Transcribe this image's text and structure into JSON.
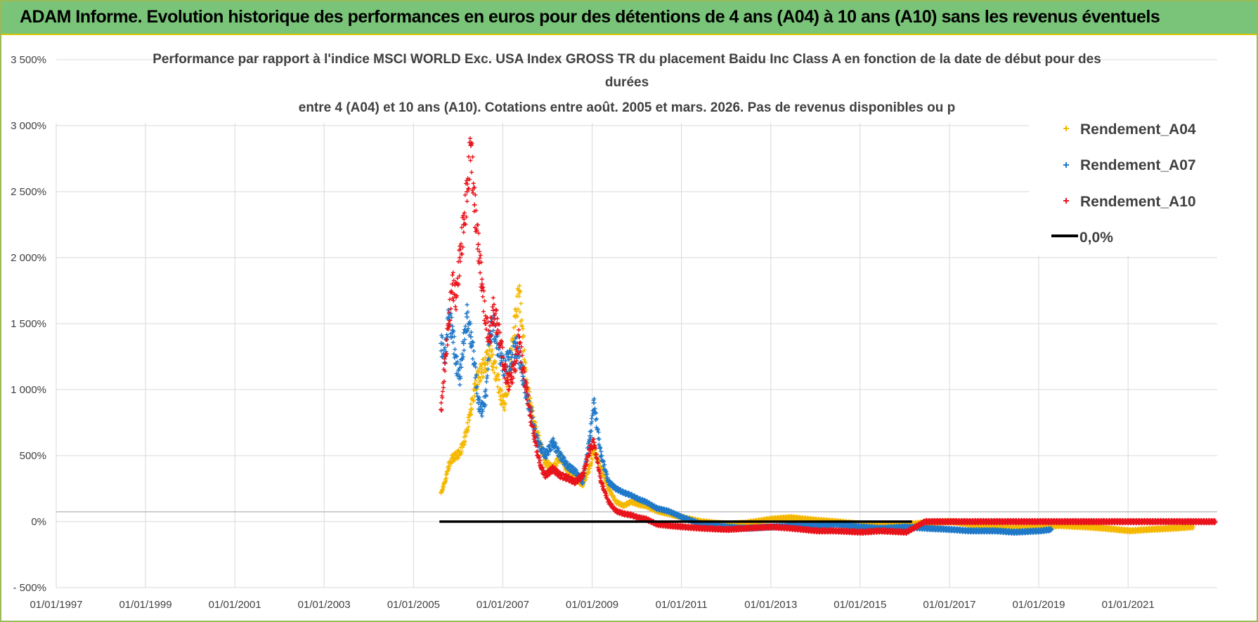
{
  "header": {
    "title": "ADAM Informe. Evolution historique des performances en euros pour des détentions de 4 ans (A04) à 10 ans (A10) sans les revenus éventuels"
  },
  "chart_data": {
    "type": "scatter",
    "subtitle_lines": [
      "Performance par rapport à l'indice MSCI WORLD Exc. USA Index GROSS TR  du placement Baidu Inc Class A en fonction de la date de début pour des",
      "durées",
      "entre 4 (A04) et 10 ans (A10).  Cotations entre août. 2005 et mars. 2026.  Pas de revenus disponibles ou p"
    ],
    "xlabel": "",
    "ylabel": "",
    "x_ticks": [
      "01/01/1997",
      "01/01/1999",
      "01/01/2001",
      "01/01/2003",
      "01/01/2005",
      "01/01/2007",
      "01/01/2009",
      "01/01/2011",
      "01/01/2013",
      "01/01/2015",
      "01/01/2017",
      "01/01/2019",
      "01/01/2021"
    ],
    "xlim": [
      "1997-01-01",
      "2022-12-31"
    ],
    "y_ticks": [
      "- 500%",
      "0%",
      "500%",
      "1 000%",
      "1 500%",
      "2 000%",
      "2 500%",
      "3 000%",
      "3 500%"
    ],
    "ylim": [
      -500,
      3500
    ],
    "grid": true,
    "legend_position": "top-right",
    "series": [
      {
        "name": "Rendement_A04",
        "color": "#f5b800",
        "marker": "plus",
        "points": [
          [
            "2005-08-15",
            220
          ],
          [
            "2005-09-15",
            300
          ],
          [
            "2005-10-15",
            420
          ],
          [
            "2005-11-15",
            480
          ],
          [
            "2005-12-15",
            500
          ],
          [
            "2006-01-15",
            520
          ],
          [
            "2006-02-15",
            600
          ],
          [
            "2006-03-15",
            700
          ],
          [
            "2006-04-15",
            850
          ],
          [
            "2006-05-15",
            1000
          ],
          [
            "2006-06-15",
            1100
          ],
          [
            "2006-07-15",
            1150
          ],
          [
            "2006-08-15",
            1200
          ],
          [
            "2006-09-15",
            1300
          ],
          [
            "2006-10-15",
            1200
          ],
          [
            "2006-11-15",
            1100
          ],
          [
            "2006-12-15",
            950
          ],
          [
            "2007-01-15",
            900
          ],
          [
            "2007-02-15",
            1050
          ],
          [
            "2007-03-15",
            1300
          ],
          [
            "2007-04-15",
            1550
          ],
          [
            "2007-05-15",
            1750
          ],
          [
            "2007-06-15",
            1400
          ],
          [
            "2007-07-15",
            1050
          ],
          [
            "2007-08-15",
            900
          ],
          [
            "2007-09-15",
            750
          ],
          [
            "2007-10-15",
            650
          ],
          [
            "2007-11-15",
            550
          ],
          [
            "2007-12-15",
            450
          ],
          [
            "2008-02-15",
            400
          ],
          [
            "2008-04-15",
            500
          ],
          [
            "2008-06-15",
            380
          ],
          [
            "2008-08-15",
            330
          ],
          [
            "2008-10-15",
            280
          ],
          [
            "2008-12-15",
            420
          ],
          [
            "2009-01-15",
            550
          ],
          [
            "2009-03-15",
            400
          ],
          [
            "2009-05-15",
            250
          ],
          [
            "2009-07-15",
            150
          ],
          [
            "2009-09-15",
            120
          ],
          [
            "2009-11-15",
            150
          ],
          [
            "2010-01-15",
            130
          ],
          [
            "2010-03-15",
            120
          ],
          [
            "2010-06-15",
            80
          ],
          [
            "2010-09-15",
            60
          ],
          [
            "2011-01-15",
            30
          ],
          [
            "2011-06-15",
            0
          ],
          [
            "2012-01-15",
            -20
          ],
          [
            "2012-06-15",
            -10
          ],
          [
            "2013-01-15",
            20
          ],
          [
            "2013-06-15",
            30
          ],
          [
            "2014-01-15",
            10
          ],
          [
            "2014-06-15",
            0
          ],
          [
            "2015-01-15",
            -20
          ],
          [
            "2015-06-15",
            -30
          ],
          [
            "2016-01-15",
            -20
          ],
          [
            "2016-06-15",
            -10
          ],
          [
            "2017-01-15",
            0
          ],
          [
            "2017-06-15",
            -20
          ],
          [
            "2018-01-15",
            -40
          ],
          [
            "2018-06-15",
            -50
          ],
          [
            "2019-01-15",
            -40
          ],
          [
            "2019-06-15",
            -30
          ],
          [
            "2020-01-15",
            -40
          ],
          [
            "2020-06-15",
            -50
          ],
          [
            "2021-01-15",
            -70
          ],
          [
            "2021-06-15",
            -60
          ],
          [
            "2022-01-15",
            -50
          ],
          [
            "2022-06-15",
            -40
          ]
        ]
      },
      {
        "name": "Rendement_A07",
        "color": "#1f78c8",
        "marker": "plus",
        "points": [
          [
            "2005-08-15",
            1350
          ],
          [
            "2005-09-15",
            1250
          ],
          [
            "2005-10-15",
            1550
          ],
          [
            "2005-11-15",
            1450
          ],
          [
            "2005-12-15",
            1200
          ],
          [
            "2006-01-15",
            1100
          ],
          [
            "2006-02-15",
            1350
          ],
          [
            "2006-03-15",
            1550
          ],
          [
            "2006-04-15",
            1400
          ],
          [
            "2006-05-15",
            1200
          ],
          [
            "2006-06-15",
            900
          ],
          [
            "2006-07-15",
            850
          ],
          [
            "2006-08-15",
            950
          ],
          [
            "2006-09-15",
            1400
          ],
          [
            "2006-10-15",
            1500
          ],
          [
            "2006-11-15",
            1350
          ],
          [
            "2006-12-15",
            1250
          ],
          [
            "2007-01-15",
            1150
          ],
          [
            "2007-02-15",
            1250
          ],
          [
            "2007-03-15",
            1200
          ],
          [
            "2007-04-15",
            1350
          ],
          [
            "2007-05-15",
            1250
          ],
          [
            "2007-06-15",
            1100
          ],
          [
            "2007-07-15",
            950
          ],
          [
            "2007-08-15",
            850
          ],
          [
            "2007-09-15",
            700
          ],
          [
            "2007-10-15",
            600
          ],
          [
            "2007-11-15",
            550
          ],
          [
            "2007-12-15",
            500
          ],
          [
            "2008-02-15",
            600
          ],
          [
            "2008-04-15",
            500
          ],
          [
            "2008-06-15",
            420
          ],
          [
            "2008-08-15",
            380
          ],
          [
            "2008-10-15",
            300
          ],
          [
            "2008-12-15",
            650
          ],
          [
            "2009-01-15",
            900
          ],
          [
            "2009-03-15",
            500
          ],
          [
            "2009-05-15",
            300
          ],
          [
            "2009-07-15",
            250
          ],
          [
            "2009-09-15",
            220
          ],
          [
            "2009-11-15",
            200
          ],
          [
            "2010-01-15",
            170
          ],
          [
            "2010-03-15",
            150
          ],
          [
            "2010-06-15",
            100
          ],
          [
            "2010-09-15",
            80
          ],
          [
            "2011-01-15",
            30
          ],
          [
            "2011-06-15",
            -20
          ],
          [
            "2012-01-15",
            -40
          ],
          [
            "2012-06-15",
            -50
          ],
          [
            "2013-01-15",
            -40
          ],
          [
            "2013-06-15",
            -30
          ],
          [
            "2014-01-15",
            -30
          ],
          [
            "2014-06-15",
            -20
          ],
          [
            "2015-01-15",
            -40
          ],
          [
            "2015-06-15",
            -50
          ],
          [
            "2016-01-15",
            -40
          ],
          [
            "2016-06-15",
            -50
          ],
          [
            "2017-01-15",
            -60
          ],
          [
            "2017-06-15",
            -70
          ],
          [
            "2018-01-15",
            -70
          ],
          [
            "2018-06-15",
            -80
          ],
          [
            "2019-01-15",
            -70
          ],
          [
            "2019-04-15",
            -60
          ]
        ]
      },
      {
        "name": "Rendement_A10",
        "color": "#e8131b",
        "marker": "plus",
        "points": [
          [
            "2005-08-15",
            850
          ],
          [
            "2005-09-15",
            1200
          ],
          [
            "2005-10-15",
            1500
          ],
          [
            "2005-11-15",
            1800
          ],
          [
            "2005-12-15",
            1700
          ],
          [
            "2006-01-15",
            2000
          ],
          [
            "2006-02-15",
            2250
          ],
          [
            "2006-03-15",
            2500
          ],
          [
            "2006-04-15",
            2850
          ],
          [
            "2006-05-15",
            2400
          ],
          [
            "2006-06-15",
            2100
          ],
          [
            "2006-07-15",
            1800
          ],
          [
            "2006-08-15",
            1500
          ],
          [
            "2006-09-15",
            1400
          ],
          [
            "2006-10-15",
            1600
          ],
          [
            "2006-11-15",
            1500
          ],
          [
            "2006-12-15",
            1350
          ],
          [
            "2007-01-15",
            1150
          ],
          [
            "2007-02-15",
            1050
          ],
          [
            "2007-03-15",
            1100
          ],
          [
            "2007-04-15",
            1200
          ],
          [
            "2007-05-15",
            1400
          ],
          [
            "2007-06-15",
            1150
          ],
          [
            "2007-07-15",
            1000
          ],
          [
            "2007-08-15",
            800
          ],
          [
            "2007-09-15",
            650
          ],
          [
            "2007-10-15",
            500
          ],
          [
            "2007-11-15",
            400
          ],
          [
            "2007-12-15",
            350
          ],
          [
            "2008-02-15",
            400
          ],
          [
            "2008-04-15",
            350
          ],
          [
            "2008-06-15",
            330
          ],
          [
            "2008-08-15",
            300
          ],
          [
            "2008-10-15",
            350
          ],
          [
            "2008-12-15",
            550
          ],
          [
            "2009-01-15",
            600
          ],
          [
            "2009-03-15",
            300
          ],
          [
            "2009-05-15",
            150
          ],
          [
            "2009-07-15",
            80
          ],
          [
            "2009-09-15",
            60
          ],
          [
            "2009-11-15",
            50
          ],
          [
            "2010-01-15",
            30
          ],
          [
            "2010-03-15",
            20
          ],
          [
            "2010-06-15",
            -20
          ],
          [
            "2010-09-15",
            -30
          ],
          [
            "2011-01-15",
            -40
          ],
          [
            "2011-06-15",
            -50
          ],
          [
            "2012-01-15",
            -60
          ],
          [
            "2012-06-15",
            -50
          ],
          [
            "2013-01-15",
            -40
          ],
          [
            "2013-06-15",
            -50
          ],
          [
            "2014-01-15",
            -70
          ],
          [
            "2014-06-15",
            -70
          ],
          [
            "2015-01-15",
            -80
          ],
          [
            "2015-06-15",
            -70
          ],
          [
            "2016-01-15",
            -80
          ],
          [
            "2016-06-15",
            0
          ],
          [
            "2017-01-15",
            0
          ],
          [
            "2017-06-15",
            0
          ],
          [
            "2018-01-15",
            0
          ],
          [
            "2018-06-15",
            0
          ],
          [
            "2019-01-15",
            0
          ],
          [
            "2019-06-15",
            0
          ],
          [
            "2020-01-15",
            0
          ],
          [
            "2020-06-15",
            0
          ],
          [
            "2021-01-15",
            0
          ],
          [
            "2021-06-15",
            0
          ],
          [
            "2022-01-15",
            0
          ],
          [
            "2022-06-15",
            0
          ],
          [
            "2022-12-15",
            0
          ]
        ]
      },
      {
        "name": "0,0%",
        "color": "#000000",
        "marker": "line",
        "points": [
          [
            "2005-08-01",
            0
          ],
          [
            "2016-03-01",
            0
          ]
        ]
      }
    ]
  }
}
